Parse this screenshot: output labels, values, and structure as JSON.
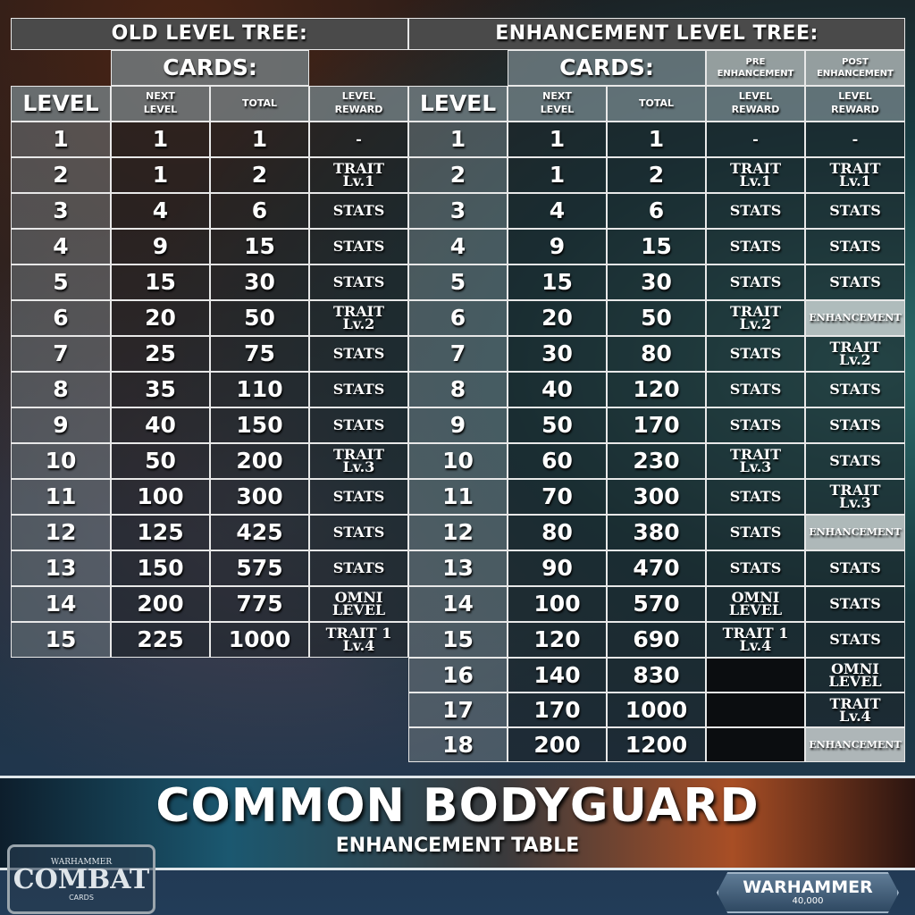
{
  "old_tree": {
    "title": "OLD LEVEL TREE:",
    "cards_header": "CARDS:",
    "columns": [
      "LEVEL",
      "NEXT\nLEVEL",
      "TOTAL",
      "LEVEL\nREWARD"
    ],
    "rows": [
      [
        "1",
        "1",
        "1",
        "-"
      ],
      [
        "2",
        "1",
        "2",
        "TRAIT\nLv.1"
      ],
      [
        "3",
        "4",
        "6",
        "STATS"
      ],
      [
        "4",
        "9",
        "15",
        "STATS"
      ],
      [
        "5",
        "15",
        "30",
        "STATS"
      ],
      [
        "6",
        "20",
        "50",
        "TRAIT\nLv.2"
      ],
      [
        "7",
        "25",
        "75",
        "STATS"
      ],
      [
        "8",
        "35",
        "110",
        "STATS"
      ],
      [
        "9",
        "40",
        "150",
        "STATS"
      ],
      [
        "10",
        "50",
        "200",
        "TRAIT\nLv.3"
      ],
      [
        "11",
        "100",
        "300",
        "STATS"
      ],
      [
        "12",
        "125",
        "425",
        "STATS"
      ],
      [
        "13",
        "150",
        "575",
        "STATS"
      ],
      [
        "14",
        "200",
        "775",
        "OMNI\nLEVEL"
      ],
      [
        "15",
        "225",
        "1000",
        "TRAIT 1\nLv.4"
      ]
    ]
  },
  "new_tree": {
    "title": "ENHANCEMENT LEVEL TREE:",
    "cards_header": "CARDS:",
    "pre_header": "PRE\nENHANCEMENT",
    "post_header": "POST\nENHANCEMENT",
    "columns": [
      "LEVEL",
      "NEXT\nLEVEL",
      "TOTAL",
      "LEVEL\nREWARD",
      "LEVEL\nREWARD"
    ],
    "rows": [
      [
        "1",
        "1",
        "1",
        "-",
        "-"
      ],
      [
        "2",
        "1",
        "2",
        "TRAIT\nLv.1",
        "TRAIT\nLv.1"
      ],
      [
        "3",
        "4",
        "6",
        "STATS",
        "STATS"
      ],
      [
        "4",
        "9",
        "15",
        "STATS",
        "STATS"
      ],
      [
        "5",
        "15",
        "30",
        "STATS",
        "STATS"
      ],
      [
        "6",
        "20",
        "50",
        "TRAIT\nLv.2",
        "ENHANCEMENT"
      ],
      [
        "7",
        "30",
        "80",
        "STATS",
        "TRAIT\nLv.2"
      ],
      [
        "8",
        "40",
        "120",
        "STATS",
        "STATS"
      ],
      [
        "9",
        "50",
        "170",
        "STATS",
        "STATS"
      ],
      [
        "10",
        "60",
        "230",
        "TRAIT\nLv.3",
        "STATS"
      ],
      [
        "11",
        "70",
        "300",
        "STATS",
        "TRAIT\nLv.3"
      ],
      [
        "12",
        "80",
        "380",
        "STATS",
        "ENHANCEMENT"
      ],
      [
        "13",
        "90",
        "470",
        "STATS",
        "STATS"
      ],
      [
        "14",
        "100",
        "570",
        "OMNI\nLEVEL",
        "STATS"
      ],
      [
        "15",
        "120",
        "690",
        "TRAIT 1\nLv.4",
        "STATS"
      ],
      [
        "16",
        "140",
        "830",
        "",
        "OMNI\nLEVEL"
      ],
      [
        "17",
        "170",
        "1000",
        "",
        "TRAIT\nLv.4"
      ],
      [
        "18",
        "200",
        "1200",
        "",
        "ENHANCEMENT"
      ]
    ]
  },
  "banner": {
    "title": "COMMON BODYGUARD",
    "subtitle": "ENHANCEMENT TABLE"
  },
  "logos": {
    "combat_top": "WARHAMMER",
    "combat_main": "COMBAT",
    "combat_bottom": "CARDS",
    "wh40k_main": "WARHAMMER",
    "wh40k_sub": "40,000"
  },
  "colors": {
    "title_bg": "#4a4a4a",
    "header_bg": "#788c8c",
    "enhancement_bg": "#c8cdcd",
    "border": "#e8e8e8"
  }
}
